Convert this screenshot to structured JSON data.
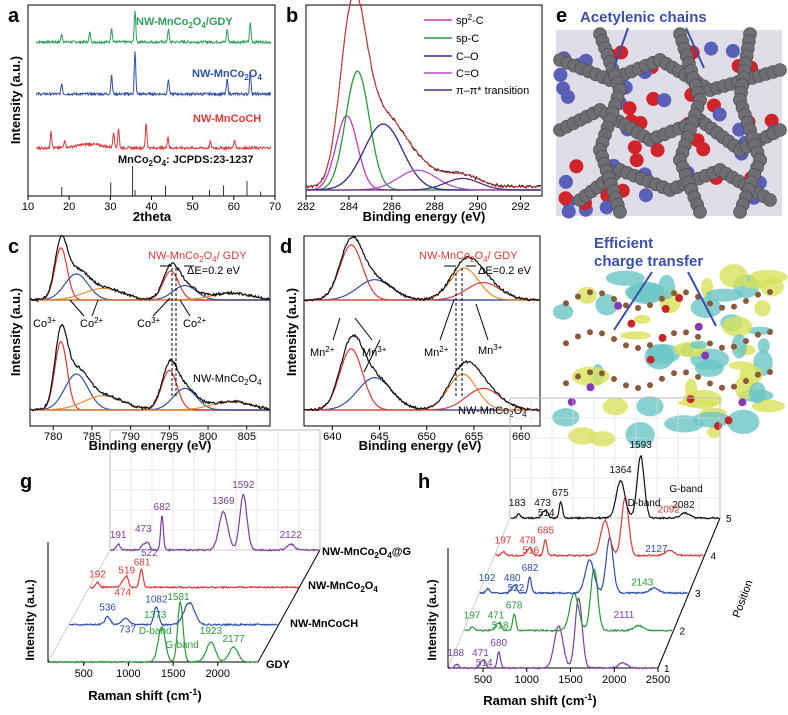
{
  "colors": {
    "gdy": "#2ca05a",
    "mnco2o4": "#3050a8",
    "mncoch": "#d83b3b",
    "black": "#111111",
    "purple": "#7b3fa0",
    "magenta": "#c23cc2",
    "green": "#2b9a3b",
    "navy": "#2b2b8a",
    "orange": "#e88a30",
    "blue_label": "#3a4fa8"
  },
  "panels": {
    "a": {
      "letter": "a",
      "xlabel": "2theta",
      "ylabel": "Intensity (a.u.)",
      "traces": [
        "NW-MnCo2O4/GDY",
        "NW-MnCo2O4",
        "NW-MnCoCH"
      ],
      "reference": "MnCo2O4: JCPDS:23-1237"
    },
    "b": {
      "letter": "b",
      "xlabel": "Binding energy (eV)",
      "legend": [
        "sp2-C",
        "sp-C",
        "C–O",
        "C=O",
        "π–π* transition"
      ]
    },
    "c": {
      "letter": "c",
      "xlabel": "Binding energy (eV)",
      "ylabel": "Intensity (a.u.)",
      "top_label": "NW-MnCo2O4/ GDY",
      "delta": "ΔE=0.2 eV",
      "bottom_label": "NW-MnCo2O4",
      "peaks": [
        "Co3+",
        "Co2+",
        "Co3+",
        "Co2+"
      ]
    },
    "d": {
      "letter": "d",
      "xlabel": "Binding energy (eV)",
      "ylabel": "Intensity (a.u.)",
      "top_label": "NW-MnCo2O4/ GDY",
      "delta": "ΔE=0.2 eV",
      "bottom_label": "NW-MnCo2O4",
      "peaks": [
        "Mn2+",
        "Mn3+",
        "Mn2+",
        "Mn3+"
      ]
    },
    "e": {
      "letter": "e",
      "label": "Acetylenic chains"
    },
    "f": {
      "letter": "f",
      "label_1": "Efficient",
      "label_2": "charge transfer"
    },
    "g": {
      "letter": "g",
      "xlabel": "Raman shift (cm-1)",
      "ylabel": "Intensity (a.u.)",
      "series": [
        "NW-MnCo2O4@G",
        "NW-MnCo2O4",
        "NW-MnCoCH",
        "GDY"
      ],
      "band_labels": [
        "D-band",
        "G-band"
      ]
    },
    "h": {
      "letter": "h",
      "xlabel": "Raman shift (cm-1)",
      "ylabel": "Intensity (a.u.)",
      "zlabel": "Position",
      "band_labels": [
        "D-band",
        "G-band"
      ]
    }
  },
  "chart_data": [
    {
      "panel": "a",
      "type": "line",
      "xlabel": "2theta",
      "ylabel": "Intensity (a.u.)",
      "xlim": [
        10,
        70
      ],
      "xticks": [
        10,
        20,
        30,
        40,
        50,
        60,
        70
      ],
      "series": [
        {
          "name": "NW-MnCo2O4/GDY",
          "peaks_x": [
            18.2,
            25.0,
            30.3,
            36.0,
            44.1,
            58.4,
            64.0
          ],
          "peaks_h": [
            0.25,
            0.3,
            0.45,
            1.0,
            0.4,
            0.4,
            0.6
          ]
        },
        {
          "name": "NW-MnCo2O4",
          "peaks_x": [
            18.2,
            30.3,
            36.0,
            44.1,
            58.4,
            64.0
          ],
          "peaks_h": [
            0.25,
            0.45,
            1.0,
            0.35,
            0.35,
            0.55
          ]
        },
        {
          "name": "NW-MnCoCH",
          "peaks_x": [
            15.6,
            18.9,
            30.8,
            32.0,
            38.7,
            44.0,
            54.3,
            60.2
          ],
          "peaks_h": [
            0.55,
            0.25,
            0.5,
            0.6,
            0.8,
            0.35,
            0.2,
            0.25
          ]
        }
      ],
      "reference_sticks": {
        "name": "MnCo2O4: JCPDS:23-1237",
        "x": [
          18.2,
          30.1,
          35.4,
          36.0,
          43.4,
          54.1,
          57.5,
          63.2,
          66.5
        ],
        "h": [
          0.3,
          0.45,
          1.0,
          0.2,
          0.35,
          0.2,
          0.35,
          0.5,
          0.15
        ]
      }
    },
    {
      "panel": "b",
      "type": "line",
      "xlabel": "Binding energy (eV)",
      "xlim": [
        282,
        293
      ],
      "xticks": [
        282,
        284,
        286,
        288,
        290,
        292
      ],
      "components": [
        {
          "name": "sp2-C",
          "center": 283.9,
          "height": 0.45,
          "width": 0.5
        },
        {
          "name": "sp-C",
          "center": 284.4,
          "height": 0.72,
          "width": 0.55
        },
        {
          "name": "C–O",
          "center": 285.6,
          "height": 0.4,
          "width": 0.9
        },
        {
          "name": "C=O",
          "center": 287.2,
          "height": 0.12,
          "width": 0.9
        },
        {
          "name": "π–π* transition",
          "center": 289.3,
          "height": 0.07,
          "width": 0.8
        }
      ]
    },
    {
      "panel": "c",
      "type": "line",
      "xlabel": "Binding energy (eV)",
      "xlim": [
        777,
        808
      ],
      "xticks": [
        780,
        785,
        790,
        795,
        800,
        805
      ]
    },
    {
      "panel": "d",
      "type": "line",
      "xlabel": "Binding energy (eV)",
      "xlim": [
        637,
        662
      ],
      "xticks": [
        640,
        645,
        650,
        655,
        660
      ]
    },
    {
      "panel": "g",
      "type": "line",
      "xlabel": "Raman shift (cm-1)",
      "xticks": [
        500,
        1000,
        1500,
        2000
      ],
      "series": [
        {
          "name": "NW-MnCo2O4@G",
          "labels": [
            "191",
            "473",
            "522",
            "682",
            "1369",
            "1592",
            "2122"
          ]
        },
        {
          "name": "NW-MnCo2O4",
          "labels": [
            "192",
            "519",
            "474",
            "681"
          ]
        },
        {
          "name": "NW-MnCoCH",
          "labels": [
            "536",
            "737",
            "1082"
          ]
        },
        {
          "name": "GDY",
          "labels": [
            "1373",
            "1581",
            "1923",
            "2177"
          ]
        }
      ]
    },
    {
      "panel": "h",
      "type": "line",
      "xlabel": "Raman shift (cm-1)",
      "xticks": [
        500,
        1000,
        1500,
        2000,
        2500
      ],
      "zticks": [
        "1",
        "2",
        "3",
        "4",
        "5"
      ],
      "zlabel": "Position",
      "series": [
        {
          "name": "5",
          "labels": [
            "183",
            "473",
            "514",
            "675",
            "1364",
            "1593",
            "2082"
          ]
        },
        {
          "name": "4",
          "labels": [
            "197",
            "478",
            "516",
            "685",
            "2092"
          ]
        },
        {
          "name": "3",
          "labels": [
            "192",
            "480",
            "522",
            "682",
            "2127"
          ]
        },
        {
          "name": "2",
          "labels": [
            "197",
            "471",
            "518",
            "678",
            "2143"
          ]
        },
        {
          "name": "1",
          "labels": [
            "188",
            "471",
            "514",
            "680",
            "2111"
          ]
        }
      ]
    }
  ]
}
